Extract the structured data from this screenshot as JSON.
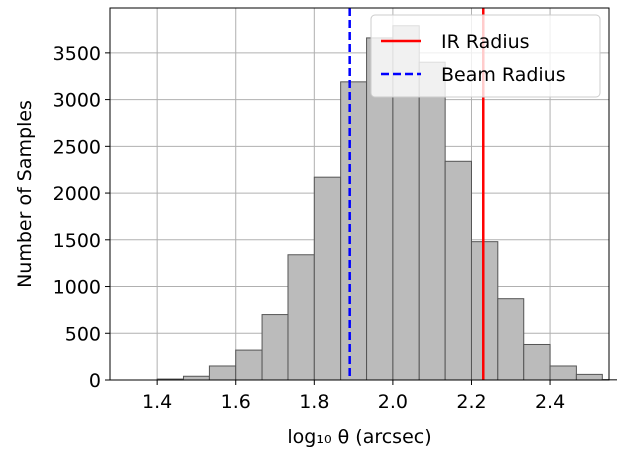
{
  "chart_data": {
    "type": "bar",
    "subtype": "histogram",
    "bin_width": 0.0667,
    "bins": [
      {
        "x0": 1.333,
        "x1": 1.4,
        "value": 0
      },
      {
        "x0": 1.4,
        "x1": 1.467,
        "value": 10
      },
      {
        "x0": 1.467,
        "x1": 1.533,
        "value": 40
      },
      {
        "x0": 1.533,
        "x1": 1.6,
        "value": 150
      },
      {
        "x0": 1.6,
        "x1": 1.667,
        "value": 320
      },
      {
        "x0": 1.667,
        "x1": 1.733,
        "value": 700
      },
      {
        "x0": 1.733,
        "x1": 1.8,
        "value": 1340
      },
      {
        "x0": 1.8,
        "x1": 1.867,
        "value": 2170
      },
      {
        "x0": 1.867,
        "x1": 1.933,
        "value": 3190
      },
      {
        "x0": 1.933,
        "x1": 2.0,
        "value": 3660
      },
      {
        "x0": 2.0,
        "x1": 2.067,
        "value": 3790
      },
      {
        "x0": 2.067,
        "x1": 2.133,
        "value": 3400
      },
      {
        "x0": 2.133,
        "x1": 2.2,
        "value": 2340
      },
      {
        "x0": 2.2,
        "x1": 2.267,
        "value": 1480
      },
      {
        "x0": 2.267,
        "x1": 2.333,
        "value": 870
      },
      {
        "x0": 2.333,
        "x1": 2.4,
        "value": 380
      },
      {
        "x0": 2.4,
        "x1": 2.467,
        "value": 150
      },
      {
        "x0": 2.467,
        "x1": 2.533,
        "value": 60
      },
      {
        "x0": 2.533,
        "x1": 2.6,
        "value": 5
      }
    ],
    "vlines": [
      {
        "name": "IR Radius",
        "x": 2.23,
        "color": "#ff0000",
        "style": "solid"
      },
      {
        "name": "Beam Radius",
        "x": 1.89,
        "color": "#0000ff",
        "style": "dashed"
      }
    ],
    "xlabel": "log₁₀ θ (arcsec)",
    "ylabel": "Number of Samples",
    "xlim": [
      1.28,
      2.55
    ],
    "ylim": [
      0,
      3980
    ],
    "xticks": [
      "1.4",
      "1.6",
      "1.8",
      "2.0",
      "2.2",
      "2.4"
    ],
    "xtick_values": [
      1.4,
      1.6,
      1.8,
      2.0,
      2.2,
      2.4
    ],
    "yticks": [
      "0",
      "500",
      "1000",
      "1500",
      "2000",
      "2500",
      "3000",
      "3500"
    ],
    "ytick_values": [
      0,
      500,
      1000,
      1500,
      2000,
      2500,
      3000,
      3500
    ],
    "grid": true,
    "legend_position": "top-right",
    "bar_color": "#bbbbbb",
    "bar_edge_color": "#555555"
  }
}
